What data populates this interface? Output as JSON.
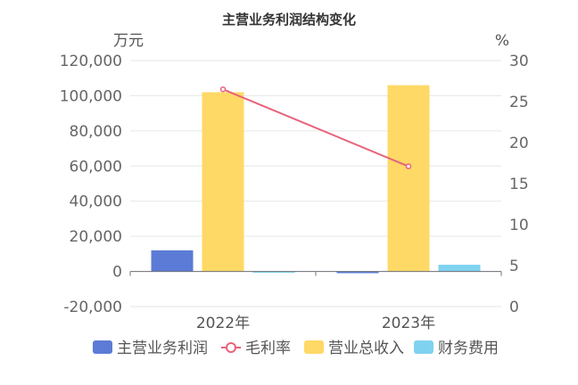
{
  "chart_data": {
    "type": "bar",
    "title": "主营业务利润结构变化",
    "categories": [
      "2022年",
      "2023年"
    ],
    "y_left": {
      "unit": "万元",
      "min": -20000,
      "max": 120000,
      "step": 20000,
      "ticks": [
        "-20,000",
        "0",
        "20,000",
        "40,000",
        "60,000",
        "80,000",
        "100,000",
        "120,000"
      ]
    },
    "y_right": {
      "unit": "%",
      "min": 0,
      "max": 30,
      "step": 5,
      "ticks": [
        "0",
        "5",
        "10",
        "15",
        "20",
        "25",
        "30"
      ]
    },
    "series": [
      {
        "name": "主营业务利润",
        "kind": "bar",
        "axis": "left",
        "color": "#5b7bd6",
        "values": [
          12000,
          -1000
        ]
      },
      {
        "name": "毛利率",
        "kind": "line",
        "axis": "right",
        "color": "#e8637b",
        "values": [
          26.5,
          17.1
        ]
      },
      {
        "name": "营业总收入",
        "kind": "bar",
        "axis": "left",
        "color": "#ffd966",
        "values": [
          102000,
          106000
        ]
      },
      {
        "name": "财务费用",
        "kind": "bar",
        "axis": "left",
        "color": "#7fd3f0",
        "values": [
          -600,
          3800
        ]
      }
    ],
    "grid": true,
    "legend_position": "bottom"
  }
}
